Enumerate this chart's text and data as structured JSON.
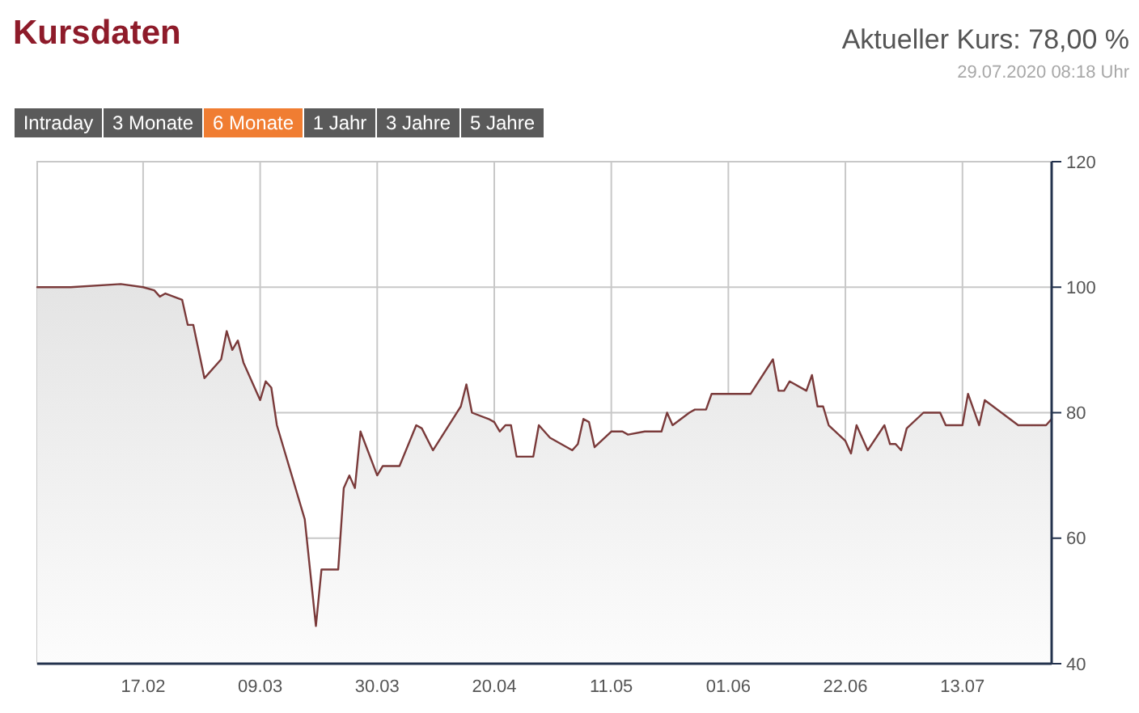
{
  "chart_data": {
    "type": "area",
    "title": "Kursdaten",
    "subtitle": "Aktueller Kurs: 78,00 %",
    "annotations": [
      "29.07.2020 08:18 Uhr",
      "Intraday",
      "3 Monate",
      "6 Monate",
      "1 Jahr",
      "3 Jahre",
      "5 Jahre"
    ],
    "x": [
      "2020-01-29",
      "2020-02-04",
      "2020-02-13",
      "2020-02-17",
      "2020-02-19",
      "2020-02-20",
      "2020-02-21",
      "2020-02-24",
      "2020-02-25",
      "2020-02-26",
      "2020-02-28",
      "2020-03-02",
      "2020-03-03",
      "2020-03-04",
      "2020-03-05",
      "2020-03-06",
      "2020-03-09",
      "2020-03-10",
      "2020-03-11",
      "2020-03-12",
      "2020-03-17",
      "2020-03-19",
      "2020-03-20",
      "2020-03-23",
      "2020-03-24",
      "2020-03-25",
      "2020-03-26",
      "2020-03-27",
      "2020-03-30",
      "2020-03-31",
      "2020-04-03",
      "2020-04-06",
      "2020-04-07",
      "2020-04-09",
      "2020-04-14",
      "2020-04-15",
      "2020-04-16",
      "2020-04-19",
      "2020-04-20",
      "2020-04-21",
      "2020-04-22",
      "2020-04-23",
      "2020-04-24",
      "2020-04-27",
      "2020-04-28",
      "2020-04-30",
      "2020-05-04",
      "2020-05-05",
      "2020-05-06",
      "2020-05-07",
      "2020-05-08",
      "2020-05-11",
      "2020-05-13",
      "2020-05-14",
      "2020-05-17",
      "2020-05-20",
      "2020-05-21",
      "2020-05-22",
      "2020-05-25",
      "2020-05-26",
      "2020-05-28",
      "2020-05-29",
      "2020-06-01",
      "2020-06-05",
      "2020-06-09",
      "2020-06-10",
      "2020-06-11",
      "2020-06-12",
      "2020-06-15",
      "2020-06-16",
      "2020-06-17",
      "2020-06-18",
      "2020-06-19",
      "2020-06-22",
      "2020-06-23",
      "2020-06-24",
      "2020-06-26",
      "2020-06-29",
      "2020-06-30",
      "2020-07-01",
      "2020-07-02",
      "2020-07-03",
      "2020-07-06",
      "2020-07-09",
      "2020-07-10",
      "2020-07-13",
      "2020-07-14",
      "2020-07-16",
      "2020-07-17",
      "2020-07-23",
      "2020-07-28",
      "2020-07-29"
    ],
    "values": [
      100,
      100,
      100.5,
      100,
      99.5,
      98.5,
      99,
      98,
      94,
      94,
      85.5,
      88.5,
      93,
      90,
      91.5,
      88,
      82,
      85,
      84,
      78,
      63,
      46,
      55,
      55,
      68,
      70,
      68,
      77,
      70,
      71.5,
      71.5,
      78,
      77.5,
      74,
      81,
      84.5,
      80,
      79,
      78.5,
      77,
      78,
      78,
      73,
      73,
      78,
      76,
      74,
      75,
      79,
      78.5,
      74.5,
      77,
      77,
      76.5,
      77,
      77,
      80,
      78,
      80,
      80.5,
      80.5,
      83,
      83,
      83,
      88.5,
      83.5,
      83.5,
      85,
      83.5,
      86,
      81,
      81,
      78,
      75.5,
      73.5,
      78,
      74,
      78,
      75,
      75,
      74,
      77.5,
      80,
      80,
      78,
      78,
      83,
      78,
      82,
      78,
      78,
      79
    ],
    "color": "#7a3a3a",
    "xlim": [
      "2020-01-29",
      "2020-07-29"
    ],
    "xticks": [
      {
        "value": "2020-02-17",
        "label": "17.02"
      },
      {
        "value": "2020-03-09",
        "label": "09.03"
      },
      {
        "value": "2020-03-30",
        "label": "30.03"
      },
      {
        "value": "2020-04-20",
        "label": "20.04"
      },
      {
        "value": "2020-05-11",
        "label": "11.05"
      },
      {
        "value": "2020-06-01",
        "label": "01.06"
      },
      {
        "value": "2020-06-22",
        "label": "22.06"
      },
      {
        "value": "2020-07-13",
        "label": "13.07"
      }
    ],
    "ylim": [
      40,
      120
    ],
    "yticks": [
      40,
      60,
      80,
      100,
      120
    ],
    "grid": true
  }
}
